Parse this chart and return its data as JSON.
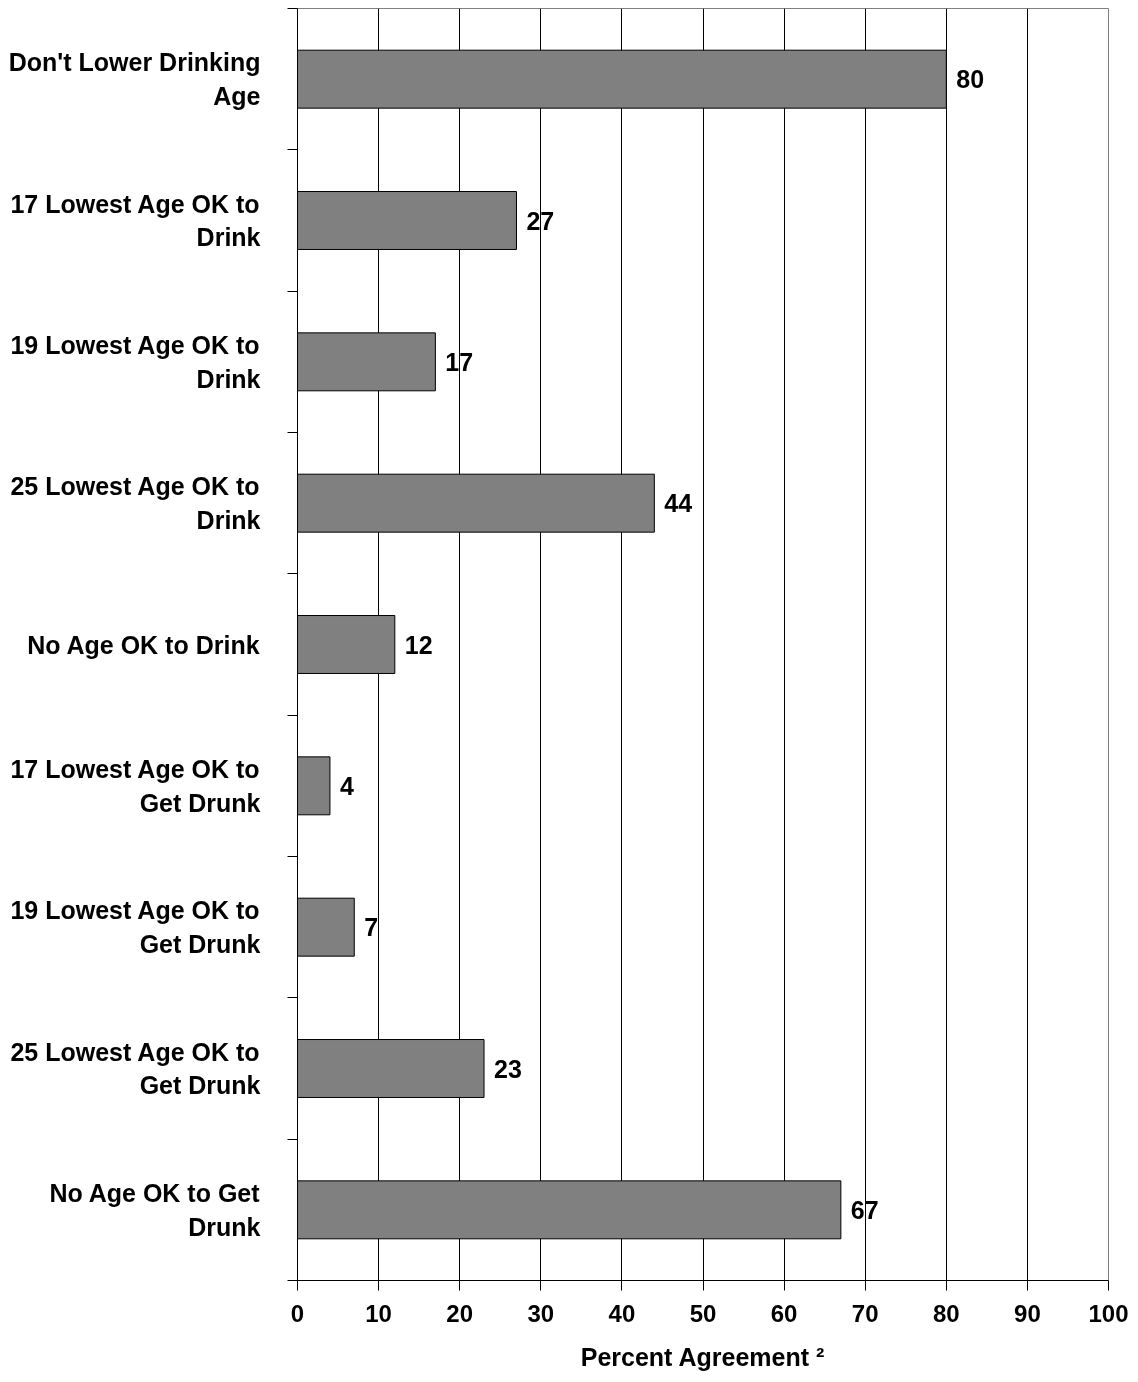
{
  "chart_data": {
    "type": "bar",
    "orientation": "horizontal",
    "categories": [
      "Don't Lower Drinking Age",
      "17 Lowest Age OK to Drink",
      "19 Lowest Age OK to Drink",
      "25 Lowest Age OK to Drink",
      "No Age OK to Drink",
      "17 Lowest Age OK to Get Drunk",
      "19 Lowest Age OK to Get Drunk",
      "25 Lowest Age OK to Get Drunk",
      "No Age OK to Get Drunk"
    ],
    "values": [
      80,
      27,
      17,
      44,
      12,
      4,
      7,
      23,
      67
    ],
    "color": "#808080",
    "data_labels": true,
    "xlim": [
      0,
      100
    ],
    "xticks": [
      0,
      10,
      20,
      30,
      40,
      50,
      60,
      70,
      80,
      90,
      100
    ],
    "xlabel": "Percent Agreement ²",
    "grid": "x"
  }
}
